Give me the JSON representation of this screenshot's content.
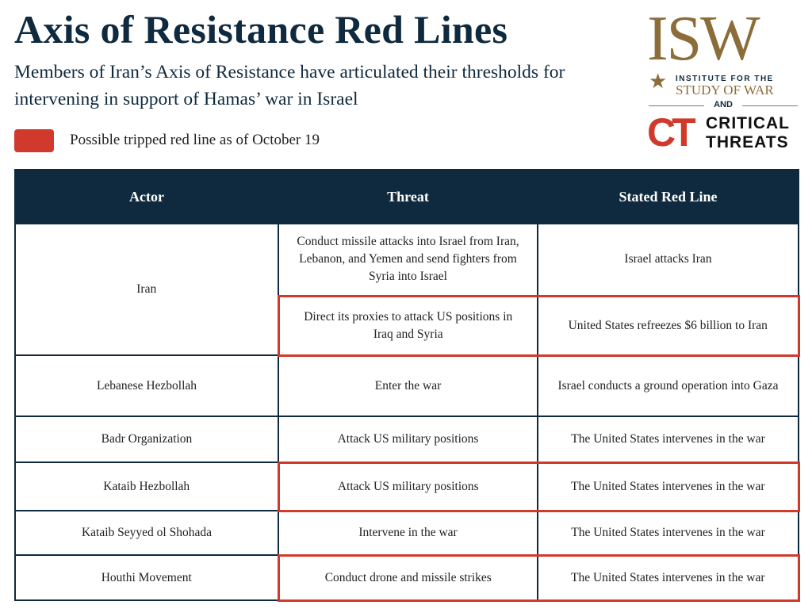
{
  "header": {
    "title": "Axis of Resistance Red Lines",
    "subtitle": "Members of Iran’s Axis of Resistance have articulated their thresholds for intervening in support of Hamas’ war in Israel"
  },
  "legend": {
    "label": "Possible tripped red line as of October 19",
    "color": "#d0392b"
  },
  "logos": {
    "isw": "ISW",
    "isw_line1": "INSTITUTE FOR THE",
    "isw_line2": "STUDY OF WAR",
    "and": "AND",
    "ct": "CT",
    "ct_line1": "CRITICAL",
    "ct_line2": "THREATS"
  },
  "table": {
    "columns": [
      "Actor",
      "Threat",
      "Stated Red Line"
    ],
    "rows": [
      {
        "actor": "Iran",
        "items": [
          {
            "threat": "Conduct missile attacks into Israel from Iran, Lebanon, and Yemen and send fighters from Syria into Israel",
            "red_line": "Israel attacks Iran",
            "tripped": false
          },
          {
            "threat": "Direct its proxies to attack US positions in Iraq and Syria",
            "red_line": "United States refreezes $6 billion to Iran",
            "tripped": true
          }
        ]
      },
      {
        "actor": "Lebanese Hezbollah",
        "items": [
          {
            "threat": "Enter the war",
            "red_line": "Israel conducts a ground operation into Gaza",
            "tripped": false
          }
        ]
      },
      {
        "actor": "Badr Organization",
        "items": [
          {
            "threat": "Attack US military positions",
            "red_line": "The United States intervenes in the war",
            "tripped": false
          }
        ]
      },
      {
        "actor": "Kataib Hezbollah",
        "items": [
          {
            "threat": "Attack US military positions",
            "red_line": "The United States intervenes in the war",
            "tripped": true
          }
        ]
      },
      {
        "actor": "Kataib Seyyed ol Shohada",
        "items": [
          {
            "threat": "Intervene in the war",
            "red_line": "The United States intervenes in the war",
            "tripped": false
          }
        ]
      },
      {
        "actor": "Houthi Movement",
        "items": [
          {
            "threat": "Conduct drone and missile strikes",
            "red_line": "The United States intervenes in the war",
            "tripped": true
          }
        ]
      }
    ]
  }
}
